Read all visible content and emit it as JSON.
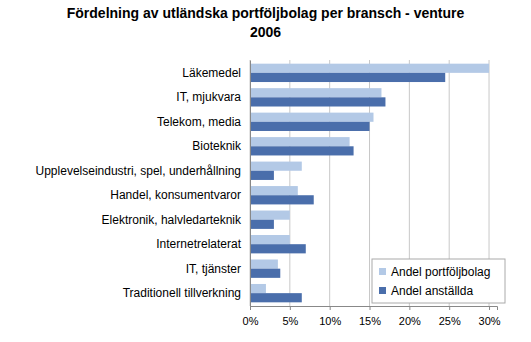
{
  "chart_data": {
    "type": "bar",
    "orientation": "horizontal",
    "title": "Fördelning av utländska portföljbolag per bransch - venture 2006",
    "categories": [
      "Läkemedel",
      "IT, mjukvara",
      "Telekom, media",
      "Bioteknik",
      "Upplevelseindustri, spel, underhållning",
      "Handel, konsumentvaror",
      "Elektronik, halvledarteknik",
      "Internetrelaterat",
      "IT, tjänster",
      "Traditionell tillverkning"
    ],
    "series": [
      {
        "name": "Andel portföljbolag",
        "color": "#b3c9e6",
        "values": [
          30,
          16.5,
          15.5,
          12.5,
          6.5,
          6,
          5,
          5,
          3.5,
          2
        ]
      },
      {
        "name": "Andel anställda",
        "color": "#4a6eab",
        "values": [
          24.5,
          17,
          15,
          13,
          3,
          8,
          3,
          7,
          3.8,
          6.5
        ]
      }
    ],
    "xlim": [
      0,
      31
    ],
    "xticks": [
      {
        "value": 0,
        "label": "0%"
      },
      {
        "value": 5,
        "label": "5%"
      },
      {
        "value": 10,
        "label": "10%"
      },
      {
        "value": 15,
        "label": "15%"
      },
      {
        "value": 20,
        "label": "20%"
      },
      {
        "value": 25,
        "label": "25%"
      },
      {
        "value": 30,
        "label": "30%"
      }
    ],
    "grid": true,
    "legend": "lower right"
  }
}
